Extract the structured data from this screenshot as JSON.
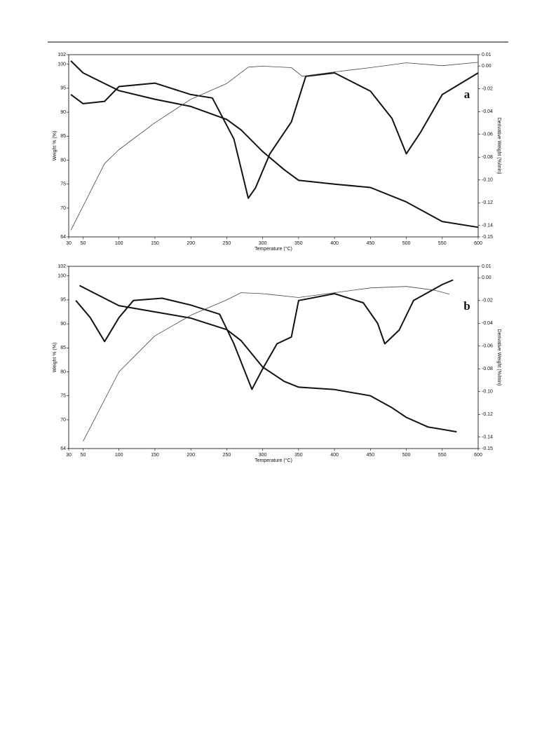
{
  "chart_data": [
    {
      "type": "line",
      "label": "a",
      "xlabel": "Temperature (°C)",
      "ylabel": "Weight % (%)",
      "y2label": "Derivative Weight (%/min)",
      "xlim": [
        30,
        600
      ],
      "xticks": [
        30,
        50,
        100,
        150,
        200,
        250,
        300,
        350,
        400,
        450,
        500,
        550,
        600
      ],
      "ylim": [
        64,
        102
      ],
      "yticks": [
        64,
        70,
        75,
        80,
        85,
        90,
        95,
        100,
        102
      ],
      "y2lim": [
        -0.15,
        0.01
      ],
      "y2ticks": [
        -0.15,
        -0.14,
        -0.12,
        {
          "value": -0.1,
          "label": "-0.10"
        },
        -0.08,
        -0.06,
        -0.04,
        -0.02,
        {
          "value": 0,
          "label": "0.00"
        },
        0.01
      ],
      "series": [
        {
          "color": "#111111",
          "x": [
            33,
            50,
            100,
            150,
            200,
            250,
            270,
            300,
            330,
            350,
            400,
            450,
            500,
            550,
            600
          ],
          "values": [
            100.7,
            98.2,
            94.5,
            92.7,
            91.2,
            88.5,
            86.3,
            81.8,
            78,
            75.8,
            75,
            74.3,
            71.3,
            67.2,
            66
          ]
        },
        {
          "color": "#111111",
          "axis": "y2",
          "x": [
            33,
            50,
            80,
            100,
            150,
            200,
            230,
            260,
            280,
            290,
            310,
            340,
            360,
            400,
            450,
            480,
            500,
            520,
            550,
            600
          ],
          "values": [
            -0.025,
            -0.033,
            -0.031,
            -0.018,
            -0.015,
            -0.025,
            -0.028,
            -0.064,
            -0.116,
            -0.107,
            -0.077,
            -0.049,
            -0.009,
            -0.006,
            -0.022,
            -0.046,
            -0.077,
            -0.058,
            -0.025,
            -0.006
          ]
        },
        {
          "color": "#444444",
          "x": [
            33,
            80,
            100,
            150,
            200,
            250,
            280,
            300,
            340,
            355,
            400,
            450,
            500,
            550,
            600
          ],
          "values": [
            65.4,
            79.3,
            82.2,
            87.8,
            92.7,
            96,
            99.4,
            99.6,
            99.3,
            97.5,
            98.4,
            99.3,
            100.3,
            99.7,
            100.4
          ]
        }
      ]
    },
    {
      "type": "line",
      "label": "b",
      "xlabel": "Temperature (°C)",
      "ylabel": "Weight % (%)",
      "y2label": "Derivative Weight (%/min)",
      "xlim": [
        30,
        600
      ],
      "xticks": [
        30,
        50,
        100,
        150,
        200,
        250,
        300,
        350,
        400,
        450,
        500,
        550,
        600
      ],
      "ylim": [
        64,
        102
      ],
      "yticks": [
        64,
        70,
        75,
        80,
        85,
        90,
        95,
        100,
        102
      ],
      "y2lim": [
        -0.15,
        0.01
      ],
      "y2ticks": [
        -0.15,
        -0.14,
        -0.12,
        {
          "value": -0.1,
          "label": "-0.10"
        },
        -0.08,
        -0.06,
        -0.04,
        -0.02,
        {
          "value": 0,
          "label": "0.00"
        },
        0.01
      ],
      "series": [
        {
          "color": "#111111",
          "x": [
            45,
            100,
            150,
            200,
            250,
            270,
            300,
            330,
            350,
            400,
            450,
            480,
            500,
            530,
            570
          ],
          "values": [
            98,
            93.8,
            92.5,
            91.2,
            88.8,
            86.5,
            81,
            78,
            76.8,
            76.3,
            75,
            72.5,
            70.5,
            68.5,
            67.5
          ]
        },
        {
          "color": "#111111",
          "axis": "y2",
          "x": [
            40,
            60,
            80,
            100,
            120,
            160,
            200,
            240,
            260,
            285,
            300,
            320,
            340,
            350,
            400,
            440,
            460,
            470,
            490,
            510,
            550,
            565
          ],
          "values": [
            -0.02,
            -0.035,
            -0.056,
            -0.035,
            -0.02,
            -0.018,
            -0.024,
            -0.032,
            -0.058,
            -0.098,
            -0.08,
            -0.058,
            -0.052,
            -0.02,
            -0.014,
            -0.022,
            -0.04,
            -0.058,
            -0.046,
            -0.02,
            -0.006,
            -0.002
          ]
        },
        {
          "color": "#444444",
          "x": [
            50,
            100,
            150,
            200,
            250,
            270,
            300,
            350,
            400,
            450,
            500,
            540,
            560
          ],
          "values": [
            65.5,
            80,
            87.5,
            91.8,
            95,
            96.5,
            96.3,
            95.5,
            96.5,
            97.5,
            97.8,
            97,
            96.2
          ]
        }
      ]
    }
  ]
}
